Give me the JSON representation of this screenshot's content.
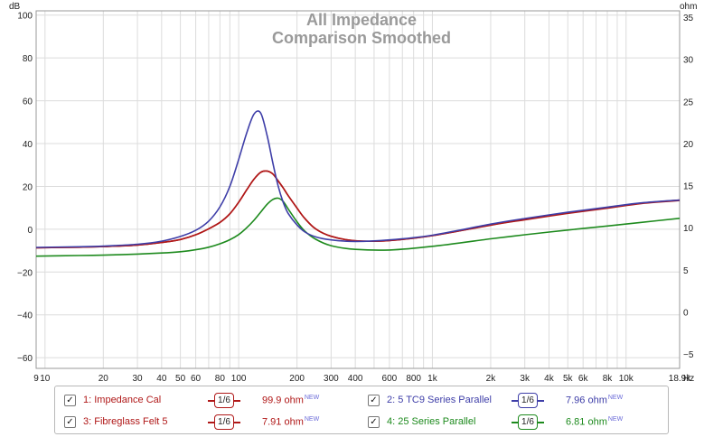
{
  "chart_data": {
    "type": "line",
    "title": "All Impedance",
    "subtitle": "Comparison Smoothed",
    "y_left_unit": "dB",
    "y_right_unit": "ohm",
    "x_unit": "Hz",
    "x_scale": "log",
    "xlim": [
      9,
      18900
    ],
    "ylim_left": [
      -65,
      102
    ],
    "ylim_right": [
      -6.7,
      35.75
    ],
    "grid": true,
    "x_ticks": [
      {
        "v": 9,
        "label": "9"
      },
      {
        "v": 10,
        "label": "10"
      },
      {
        "v": 20,
        "label": "20"
      },
      {
        "v": 30,
        "label": "30"
      },
      {
        "v": 40,
        "label": "40"
      },
      {
        "v": 50,
        "label": "50"
      },
      {
        "v": 60,
        "label": "60"
      },
      {
        "v": 80,
        "label": "80"
      },
      {
        "v": 100,
        "label": "100"
      },
      {
        "v": 200,
        "label": "200"
      },
      {
        "v": 300,
        "label": "300"
      },
      {
        "v": 400,
        "label": "400"
      },
      {
        "v": 600,
        "label": "600"
      },
      {
        "v": 800,
        "label": "800"
      },
      {
        "v": 1000,
        "label": "1k"
      },
      {
        "v": 2000,
        "label": "2k"
      },
      {
        "v": 3000,
        "label": "3k"
      },
      {
        "v": 4000,
        "label": "4k"
      },
      {
        "v": 5000,
        "label": "5k"
      },
      {
        "v": 6000,
        "label": "6k"
      },
      {
        "v": 8000,
        "label": "8k"
      },
      {
        "v": 10000,
        "label": "10k"
      },
      {
        "v": 18900,
        "label": "18.9k"
      }
    ],
    "x_grid": [
      9,
      10,
      20,
      30,
      40,
      50,
      60,
      70,
      80,
      90,
      100,
      200,
      300,
      400,
      500,
      600,
      700,
      800,
      900,
      1000,
      2000,
      3000,
      4000,
      5000,
      6000,
      7000,
      8000,
      9000,
      10000
    ],
    "y_left_ticks": [
      -60,
      -40,
      -20,
      0,
      20,
      40,
      60,
      80,
      100
    ],
    "y_right_ticks": [
      -5,
      0,
      5,
      10,
      15,
      20,
      25,
      30,
      35
    ],
    "series": [
      {
        "name": "1: Impedance Cal",
        "color": "#b01818",
        "x": [
          9,
          15,
          20,
          30,
          40,
          50,
          60,
          70,
          80,
          90,
          100,
          110,
          120,
          130,
          140,
          150,
          160,
          170,
          180,
          200,
          220,
          250,
          300,
          400,
          600,
          1000,
          2000,
          3000,
          5000,
          8000,
          12000,
          18900
        ],
        "y": [
          -8.7,
          -8.4,
          -8.1,
          -7.4,
          -6.2,
          -4.8,
          -2.6,
          0.2,
          3.2,
          7.2,
          12.6,
          18.4,
          23.4,
          26.6,
          27.2,
          25.8,
          22.5,
          19.2,
          15.7,
          9.9,
          4.9,
          0.1,
          -3.3,
          -5.4,
          -5.3,
          -3.0,
          2.0,
          4.6,
          7.6,
          10.0,
          12.2,
          13.6
        ]
      },
      {
        "name": "2: 5 TC9 Series Parallel",
        "color": "#3e3ea8",
        "x": [
          9,
          15,
          20,
          30,
          40,
          50,
          60,
          70,
          80,
          90,
          100,
          110,
          120,
          130,
          140,
          150,
          160,
          170,
          180,
          200,
          220,
          250,
          300,
          400,
          600,
          1000,
          2000,
          3000,
          5000,
          8000,
          12000,
          18900
        ],
        "y": [
          -8.5,
          -8.2,
          -7.9,
          -7.0,
          -5.6,
          -3.4,
          -0.5,
          3.8,
          10.5,
          20.0,
          32.6,
          45.0,
          53.8,
          54.2,
          44.0,
          31.0,
          20.0,
          12.4,
          7.4,
          2.0,
          -1.3,
          -3.6,
          -5.0,
          -5.7,
          -5.0,
          -2.8,
          2.4,
          5.0,
          7.9,
          10.3,
          12.3,
          13.6
        ]
      },
      {
        "name": "3: Fibreglass Felt 5",
        "color": "#b01818",
        "x": [
          9,
          15,
          20,
          30,
          40,
          50,
          60,
          70,
          80,
          90,
          100,
          110,
          120,
          130,
          140,
          150,
          160,
          170,
          180,
          200,
          220,
          250,
          300,
          400,
          600,
          1000,
          2000,
          3000,
          5000,
          8000,
          12000,
          18900
        ],
        "y": [
          -8.7,
          -8.4,
          -8.1,
          -7.4,
          -6.2,
          -4.8,
          -2.6,
          0.2,
          3.2,
          7.2,
          12.6,
          18.4,
          23.4,
          26.6,
          27.2,
          25.8,
          22.5,
          19.2,
          15.7,
          9.9,
          4.9,
          0.1,
          -3.3,
          -5.4,
          -5.3,
          -3.0,
          1.9,
          4.4,
          7.4,
          9.8,
          12.0,
          13.4
        ]
      },
      {
        "name": "4: 25 Series Parallel",
        "color": "#1d8a1d",
        "x": [
          9,
          15,
          20,
          30,
          40,
          50,
          60,
          70,
          80,
          90,
          100,
          110,
          120,
          130,
          140,
          150,
          160,
          170,
          180,
          200,
          220,
          250,
          300,
          400,
          600,
          1000,
          2000,
          3000,
          5000,
          8000,
          12000,
          18900
        ],
        "y": [
          -12.6,
          -12.3,
          -12.1,
          -11.6,
          -11.1,
          -10.5,
          -9.6,
          -8.4,
          -6.8,
          -4.9,
          -2.5,
          0.7,
          4.2,
          8.0,
          11.6,
          13.9,
          14.5,
          12.9,
          9.5,
          3.5,
          -1.0,
          -4.7,
          -7.7,
          -9.4,
          -9.7,
          -8.0,
          -4.5,
          -2.6,
          -0.4,
          1.5,
          3.2,
          5.1
        ]
      }
    ]
  },
  "legend": {
    "items": [
      {
        "label": "1: Impedance Cal",
        "smoothing": "1/6",
        "value": "99.9 ohm",
        "badge": "NEW",
        "checked": "✓"
      },
      {
        "label": "2: 5 TC9 Series Parallel",
        "smoothing": "1/6",
        "value": "7.96 ohm",
        "badge": "NEW",
        "checked": "✓"
      },
      {
        "label": "3: Fibreglass Felt 5",
        "smoothing": "1/6",
        "value": "7.91 ohm",
        "badge": "NEW",
        "checked": "✓"
      },
      {
        "label": "4: 25 Series Parallel",
        "smoothing": "1/6",
        "value": "6.81 ohm",
        "badge": "NEW",
        "checked": "✓"
      }
    ]
  }
}
